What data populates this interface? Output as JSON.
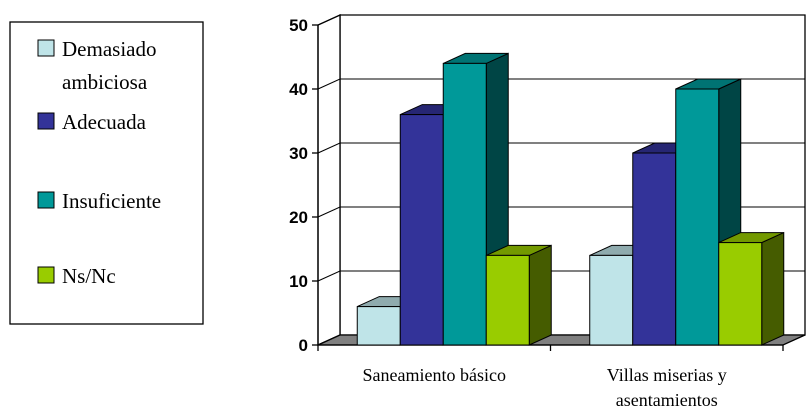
{
  "chart_data": {
    "type": "bar",
    "style": "3d-clustered",
    "categories": [
      [
        "Saneamiento básico"
      ],
      [
        "Villas miserias y",
        "asentamientos"
      ]
    ],
    "series": [
      {
        "name": [
          "Demasiado",
          "ambiciosa"
        ],
        "values": [
          6,
          14
        ],
        "color": "#BFE4E8"
      },
      {
        "name": [
          "Adecuada"
        ],
        "values": [
          36,
          30
        ],
        "color": "#333399"
      },
      {
        "name": [
          "Insuficiente"
        ],
        "values": [
          44,
          40
        ],
        "color": "#009999"
      },
      {
        "name": [
          "Ns/Nc"
        ],
        "values": [
          14,
          16
        ],
        "color": "#99CC00"
      }
    ],
    "ylim": [
      0,
      50
    ],
    "yticks": [
      0,
      10,
      20,
      30,
      40,
      50
    ],
    "grid": true,
    "legend": "left"
  }
}
